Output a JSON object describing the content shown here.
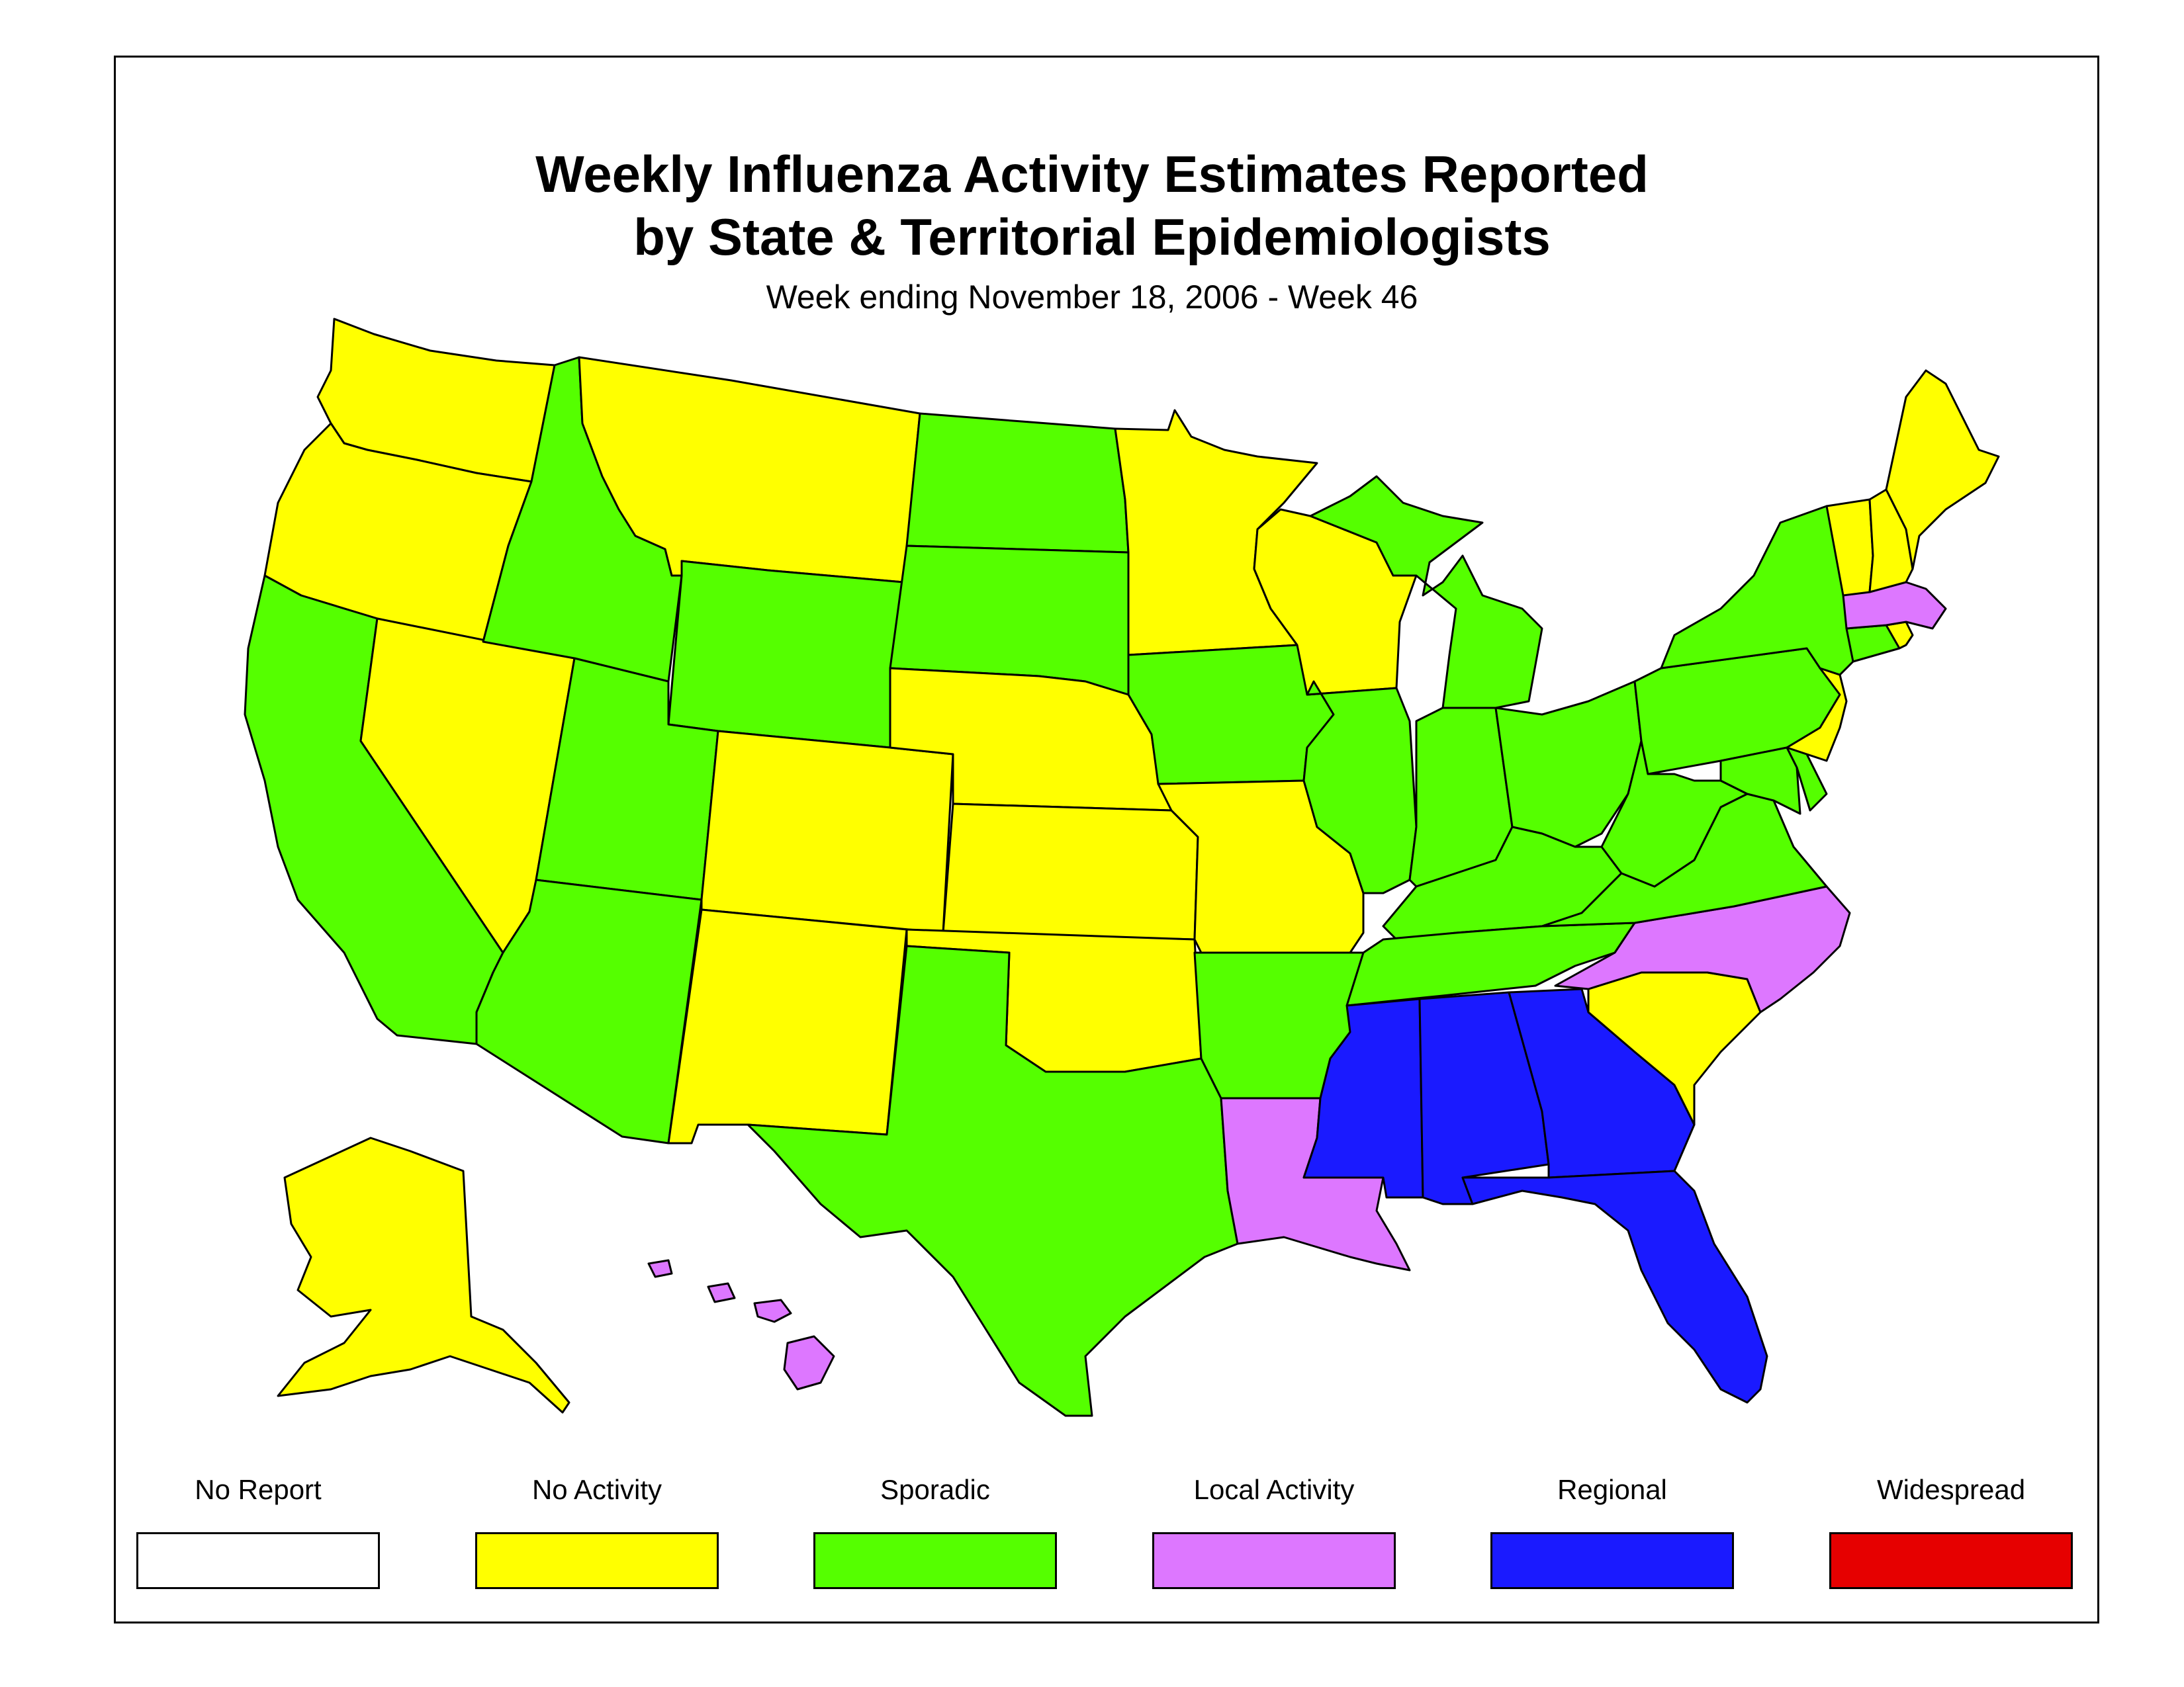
{
  "title_line1": "Weekly Influenza Activity Estimates Reported",
  "title_line2": "by State & Territorial Epidemiologists",
  "subtitle": "Week ending November 18, 2006 - Week 46",
  "colors": {
    "no_report": "#ffffff",
    "no_activity": "#ffff00",
    "sporadic": "#55ff00",
    "local": "#dd77ff",
    "regional": "#1a1aff",
    "widespread": "#e60000"
  },
  "legend": [
    {
      "key": "no_report",
      "label": "No Report"
    },
    {
      "key": "no_activity",
      "label": "No Activity"
    },
    {
      "key": "sporadic",
      "label": "Sporadic"
    },
    {
      "key": "local",
      "label": "Local Activity"
    },
    {
      "key": "regional",
      "label": "Regional"
    },
    {
      "key": "widespread",
      "label": "Widespread"
    }
  ],
  "states": {
    "WA": "no_activity",
    "OR": "no_activity",
    "CA": "sporadic",
    "NV": "no_activity",
    "ID": "sporadic",
    "MT": "no_activity",
    "WY": "sporadic",
    "UT": "sporadic",
    "AZ": "sporadic",
    "CO": "no_activity",
    "NM": "no_activity",
    "ND": "sporadic",
    "SD": "sporadic",
    "NE": "no_activity",
    "KS": "no_activity",
    "OK": "no_activity",
    "TX": "sporadic",
    "MN": "no_activity",
    "IA": "sporadic",
    "MO": "no_activity",
    "AR": "sporadic",
    "LA": "local",
    "WI": "no_activity",
    "IL": "sporadic",
    "MI": "sporadic",
    "IN": "sporadic",
    "OH": "sporadic",
    "KY": "sporadic",
    "TN": "sporadic",
    "MS": "regional",
    "AL": "regional",
    "GA": "regional",
    "FL": "regional",
    "SC": "no_activity",
    "NC": "local",
    "VA": "sporadic",
    "WV": "sporadic",
    "PA": "sporadic",
    "NY": "sporadic",
    "NJ": "no_activity",
    "DE": "sporadic",
    "MD": "sporadic",
    "CT": "sporadic",
    "RI": "no_activity",
    "MA": "local",
    "VT": "no_activity",
    "NH": "no_activity",
    "ME": "no_activity",
    "AK": "no_activity",
    "HI": "local"
  }
}
